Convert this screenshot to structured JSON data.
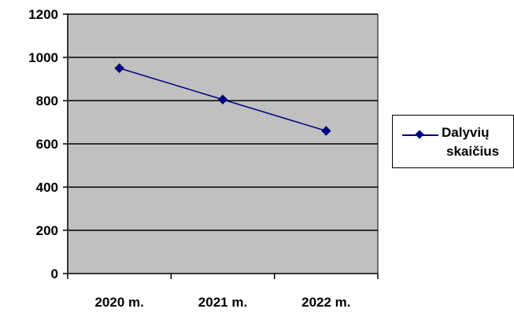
{
  "chart_data": {
    "type": "line",
    "categories": [
      "2020 m.",
      "2021 m.",
      "2022 m."
    ],
    "series": [
      {
        "name": "Dalyvių skaičius",
        "values": [
          950,
          805,
          660
        ],
        "color": "#000080"
      }
    ],
    "ylim": [
      0,
      1200
    ],
    "yticks": [
      0,
      200,
      400,
      600,
      800,
      1000,
      1200
    ],
    "grid": true,
    "plot_background": "#c0c0c0",
    "legend_position": "right",
    "legend": {
      "line1": "Dalyvių",
      "line2": "skaičius"
    }
  }
}
